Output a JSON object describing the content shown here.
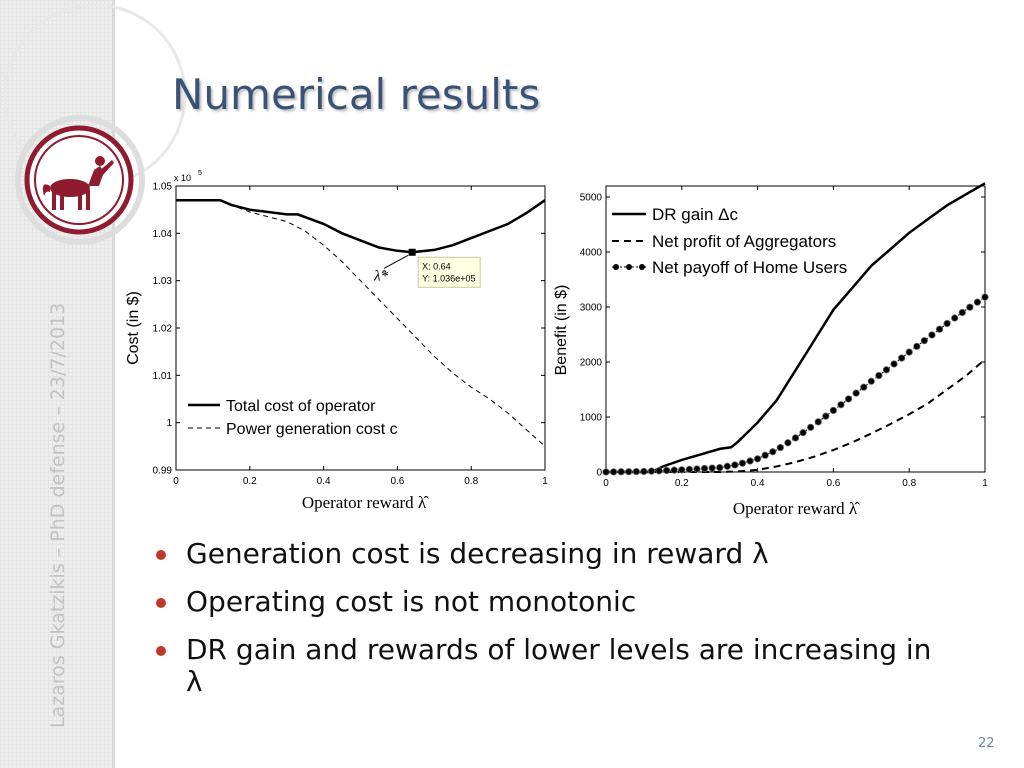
{
  "slide": {
    "title": "Numerical results",
    "sidebar_text": "Lazaros Gkatzikis – PhD defense – 23/7/2013",
    "page_number": "22",
    "bullets": [
      "Generation cost is decreasing in reward  λ",
      "Operating cost is not monotonic",
      "DR gain and rewards of lower levels are increasing in λ"
    ],
    "colors": {
      "title": "#3a5275",
      "bullet": "#c0392b",
      "logo": "#8e1b2e"
    }
  },
  "chart_data": [
    {
      "type": "line",
      "exponent_label": "x 10",
      "exponent_power": "5",
      "xlabel": "Operator reward λ̂",
      "ylabel": "Cost (in $)",
      "xlim": [
        0,
        1
      ],
      "ylim": [
        0.99,
        1.05
      ],
      "x_ticks": [
        "0",
        "0.2",
        "0.4",
        "0.6",
        "0.8",
        "1"
      ],
      "y_ticks": [
        "0.99",
        "1",
        "1.01",
        "1.02",
        "1.03",
        "1.04",
        "1.05"
      ],
      "legend_position": "bottom-left",
      "annotation": {
        "label": "λ̂*",
        "tip_x": "X: 0.64",
        "tip_y": "Y: 1.036e+05",
        "x": 0.64,
        "y": 1.036
      },
      "series": [
        {
          "name": "Total cost of operator",
          "style": "solid",
          "x": [
            0,
            0.05,
            0.12,
            0.15,
            0.2,
            0.25,
            0.3,
            0.33,
            0.4,
            0.45,
            0.5,
            0.55,
            0.6,
            0.64,
            0.7,
            0.75,
            0.8,
            0.85,
            0.9,
            0.95,
            1.0
          ],
          "y": [
            1.047,
            1.047,
            1.047,
            1.046,
            1.045,
            1.0445,
            1.044,
            1.044,
            1.042,
            1.04,
            1.0385,
            1.037,
            1.0363,
            1.036,
            1.0365,
            1.0375,
            1.039,
            1.0405,
            1.042,
            1.0443,
            1.047
          ]
        },
        {
          "name": "Power generation cost c",
          "style": "dashed",
          "x": [
            0,
            0.12,
            0.15,
            0.2,
            0.25,
            0.3,
            0.35,
            0.4,
            0.45,
            0.5,
            0.55,
            0.6,
            0.65,
            0.7,
            0.75,
            0.8,
            0.85,
            0.9,
            0.95,
            1.0
          ],
          "y": [
            1.047,
            1.047,
            1.046,
            1.0445,
            1.0435,
            1.0425,
            1.0405,
            1.0375,
            1.034,
            1.03,
            1.026,
            1.022,
            1.018,
            1.014,
            1.0105,
            1.0075,
            1.005,
            1.002,
            0.9985,
            0.995
          ]
        }
      ]
    },
    {
      "type": "line",
      "xlabel": "Operator reward λ̂",
      "ylabel": "Benefit (in $)",
      "xlim": [
        0,
        1
      ],
      "ylim": [
        0,
        5200
      ],
      "x_ticks": [
        "0",
        "0.2",
        "0.4",
        "0.6",
        "0.8",
        "1"
      ],
      "y_ticks": [
        "0",
        "1000",
        "2000",
        "3000",
        "4000",
        "5000"
      ],
      "legend_position": "top-left",
      "series": [
        {
          "name": "DR gain Δc",
          "style": "solid",
          "x": [
            0,
            0.12,
            0.15,
            0.2,
            0.25,
            0.3,
            0.33,
            0.35,
            0.4,
            0.45,
            0.5,
            0.55,
            0.6,
            0.65,
            0.7,
            0.75,
            0.8,
            0.85,
            0.9,
            0.95,
            1.0
          ],
          "y": [
            0,
            0,
            100,
            220,
            320,
            420,
            450,
            560,
            900,
            1300,
            1850,
            2400,
            2950,
            3350,
            3750,
            4050,
            4350,
            4600,
            4850,
            5050,
            5250
          ]
        },
        {
          "name": "Net profit of Aggregators",
          "style": "dashed",
          "x": [
            0,
            0.3,
            0.35,
            0.4,
            0.45,
            0.5,
            0.55,
            0.6,
            0.65,
            0.7,
            0.75,
            0.8,
            0.85,
            0.9,
            0.95,
            1.0
          ],
          "y": [
            0,
            0,
            10,
            40,
            100,
            180,
            280,
            400,
            540,
            700,
            870,
            1050,
            1250,
            1500,
            1750,
            2050
          ]
        },
        {
          "name": "Net payoff of Home Users",
          "style": "dotted-markers",
          "x": [
            0,
            0.1,
            0.2,
            0.3,
            0.35,
            0.4,
            0.45,
            0.5,
            0.55,
            0.6,
            0.65,
            0.7,
            0.75,
            0.8,
            0.85,
            0.9,
            0.95,
            1.0
          ],
          "y": [
            0,
            10,
            40,
            80,
            140,
            240,
            400,
            620,
            860,
            1120,
            1380,
            1650,
            1910,
            2180,
            2440,
            2700,
            2950,
            3180
          ]
        }
      ]
    }
  ]
}
